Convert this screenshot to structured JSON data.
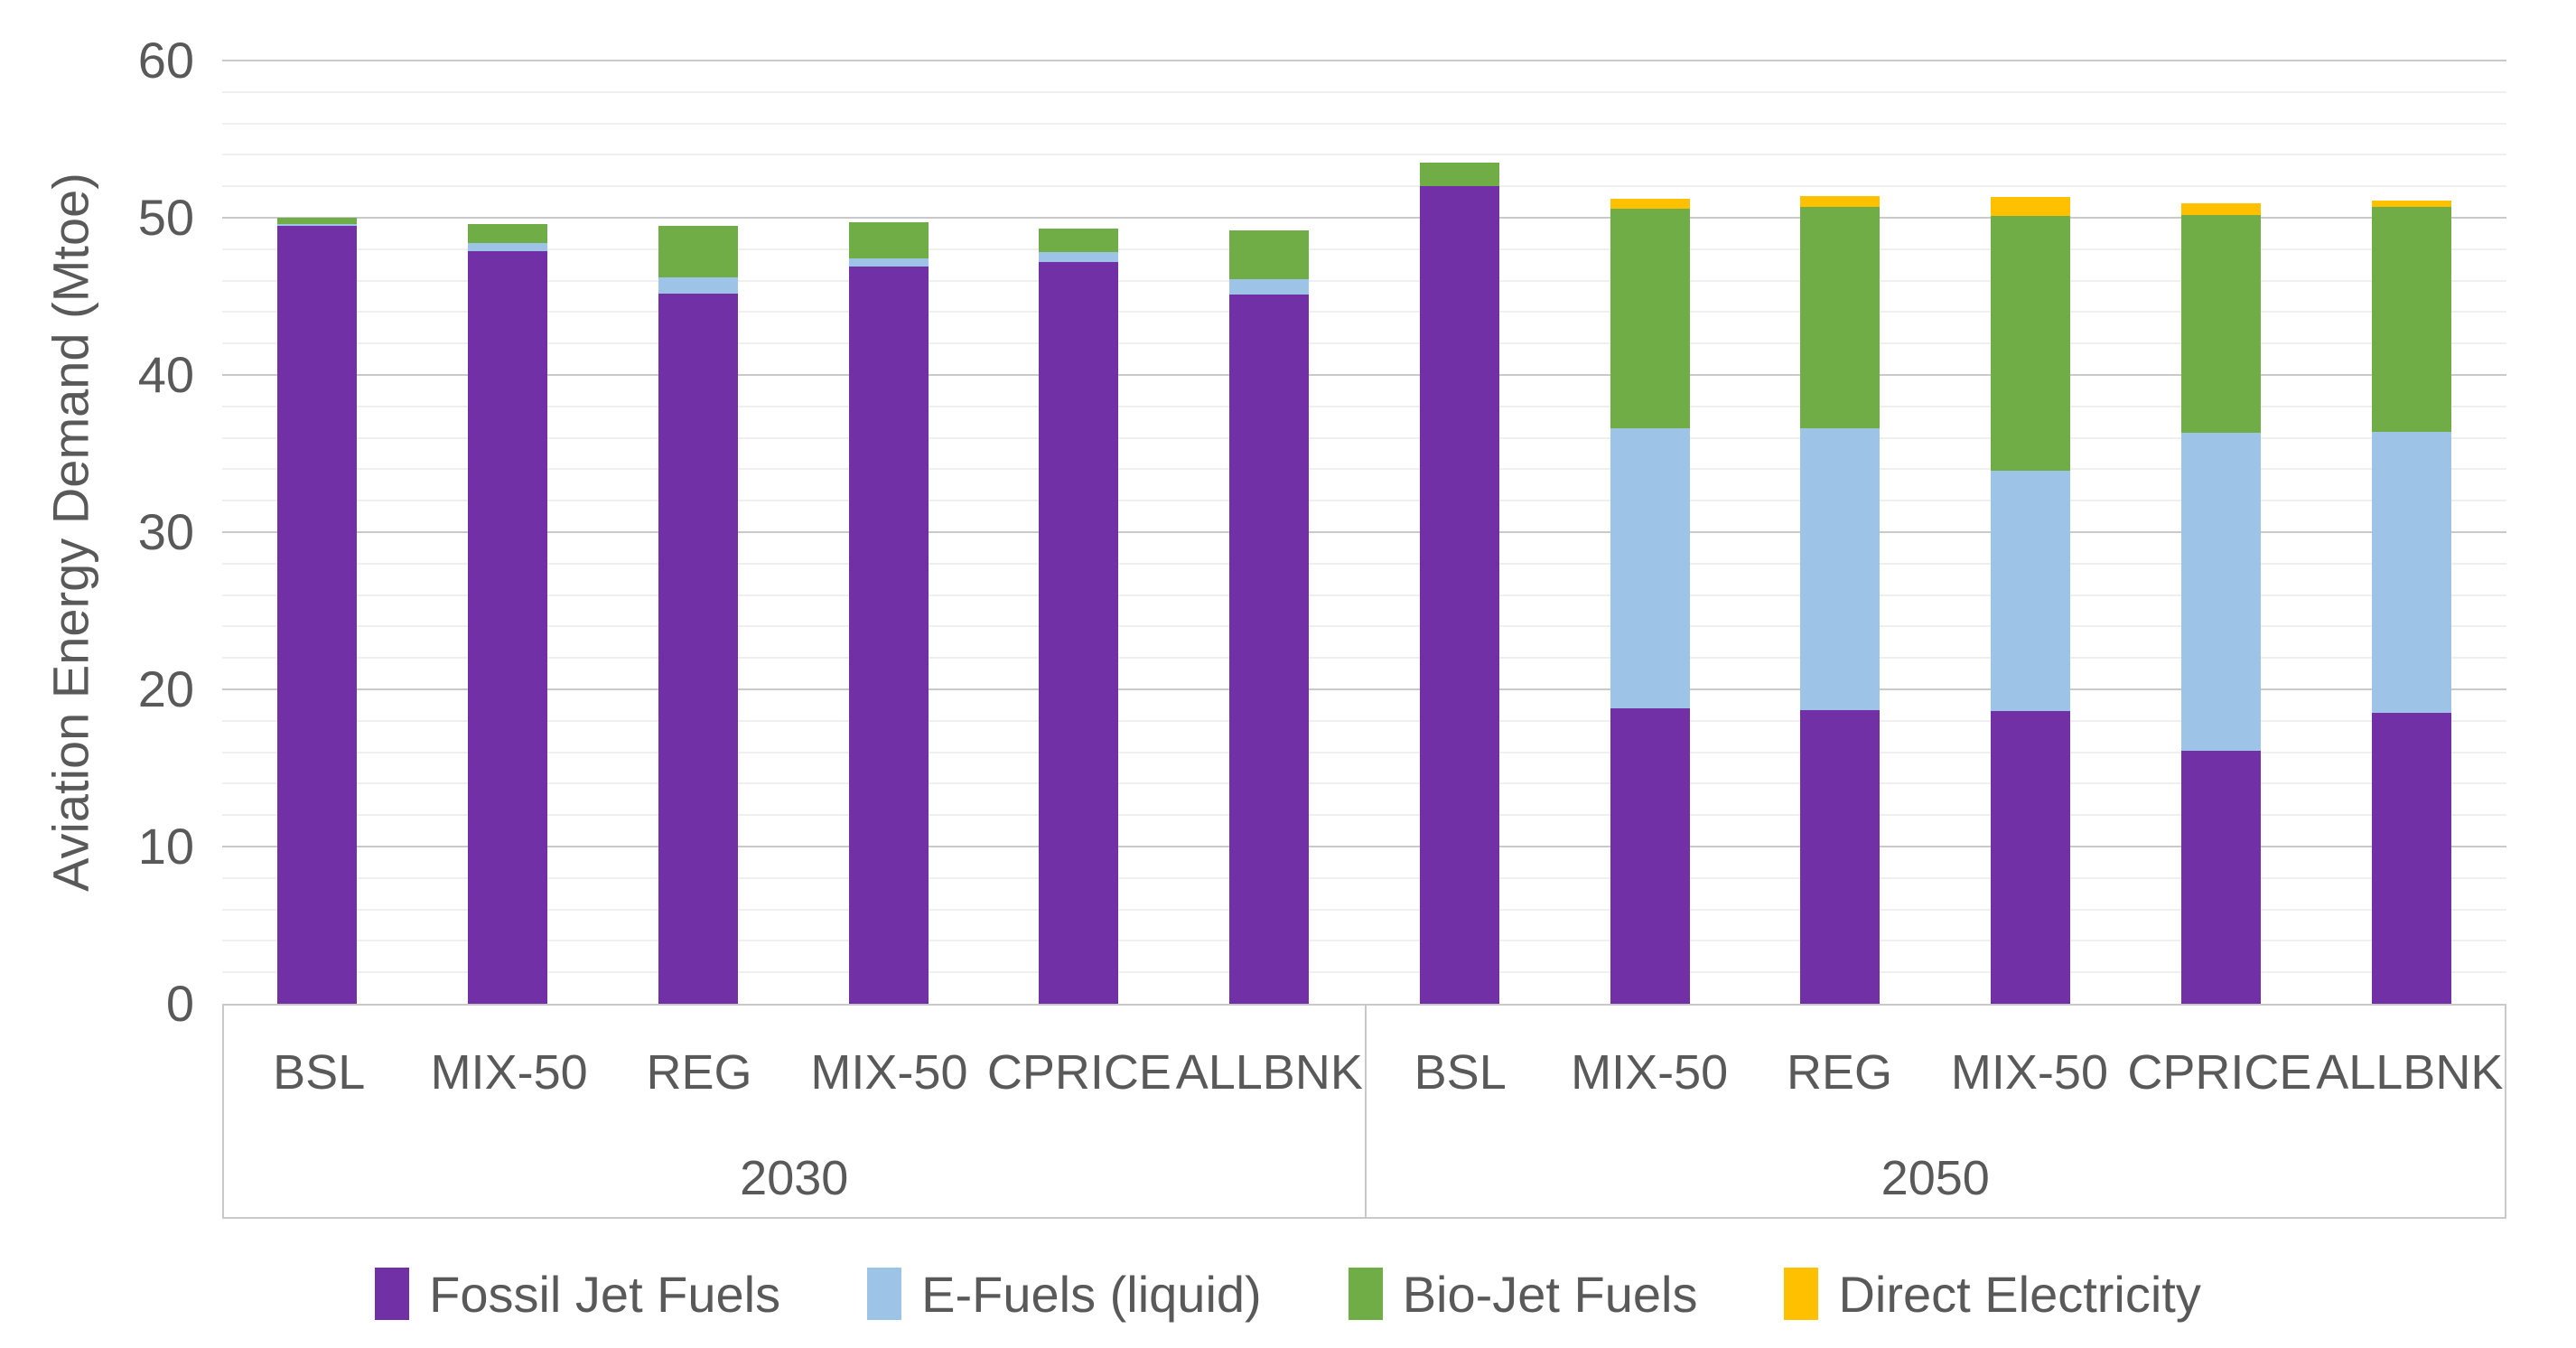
{
  "chart_data": {
    "type": "bar",
    "subtype": "stacked-vertical",
    "title": "",
    "ylabel": "Aviation Energy Demand (Mtoe)",
    "xlabel": "",
    "ylim": [
      0,
      60
    ],
    "yticks": [
      0,
      10,
      20,
      30,
      40,
      50,
      60
    ],
    "minor_gridline_step": 2,
    "major_gridline_step": 10,
    "grid": "on",
    "legend_position": "bottom",
    "groups": [
      {
        "year": "2030",
        "categories": [
          "BSL",
          "MIX-50",
          "REG",
          "MIX-50",
          "CPRICE",
          "ALLBNK"
        ]
      },
      {
        "year": "2050",
        "categories": [
          "BSL",
          "MIX-50",
          "REG",
          "MIX-50",
          "CPRICE",
          "ALLBNK"
        ]
      }
    ],
    "series": [
      {
        "name": "Fossil Jet Fuels",
        "color": "#7130A6",
        "values": [
          49.5,
          47.9,
          45.2,
          46.9,
          47.2,
          45.1,
          52.0,
          18.8,
          18.7,
          18.6,
          16.1,
          18.5
        ]
      },
      {
        "name": "E-Fuels (liquid)",
        "color": "#9DC3E6",
        "values": [
          0.1,
          0.5,
          1.0,
          0.5,
          0.6,
          1.0,
          0.0,
          17.8,
          17.9,
          15.3,
          20.2,
          17.9
        ]
      },
      {
        "name": "Bio-Jet Fuels",
        "color": "#70AD47",
        "values": [
          0.4,
          1.2,
          3.3,
          2.3,
          1.5,
          3.1,
          1.5,
          14.0,
          14.1,
          16.2,
          13.9,
          14.3
        ]
      },
      {
        "name": "Direct Electricity",
        "color": "#FFC000",
        "values": [
          0.0,
          0.0,
          0.0,
          0.0,
          0.0,
          0.0,
          0.0,
          0.6,
          0.7,
          1.2,
          0.7,
          0.4
        ]
      }
    ],
    "colors": {
      "text": "#595959",
      "minor_gridline": "#EFEFEF",
      "major_gridline": "#C9C9C9",
      "axis_box_border": "#C9C9C9",
      "background": "#FFFFFF"
    }
  }
}
